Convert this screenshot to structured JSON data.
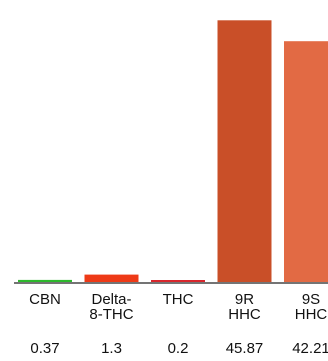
{
  "chart_data": {
    "type": "bar",
    "categories": [
      [
        "CBN"
      ],
      [
        "Delta-",
        "8-THC"
      ],
      [
        "THC"
      ],
      [
        "9R",
        "HHC"
      ],
      [
        "9S",
        "HHC"
      ]
    ],
    "values": [
      0.37,
      1.3,
      0.2,
      45.87,
      42.21
    ],
    "value_labels": [
      "0.37",
      "1.3",
      "0.2",
      "45.87",
      "42.21"
    ],
    "colors": [
      "#2db92d",
      "#ee3a17",
      "#d8262c",
      "#c94f28",
      "#e26a44"
    ],
    "ylim": [
      0,
      47.5
    ],
    "grid": false,
    "legend": "none",
    "title": "",
    "xlabel": "",
    "ylabel": ""
  }
}
